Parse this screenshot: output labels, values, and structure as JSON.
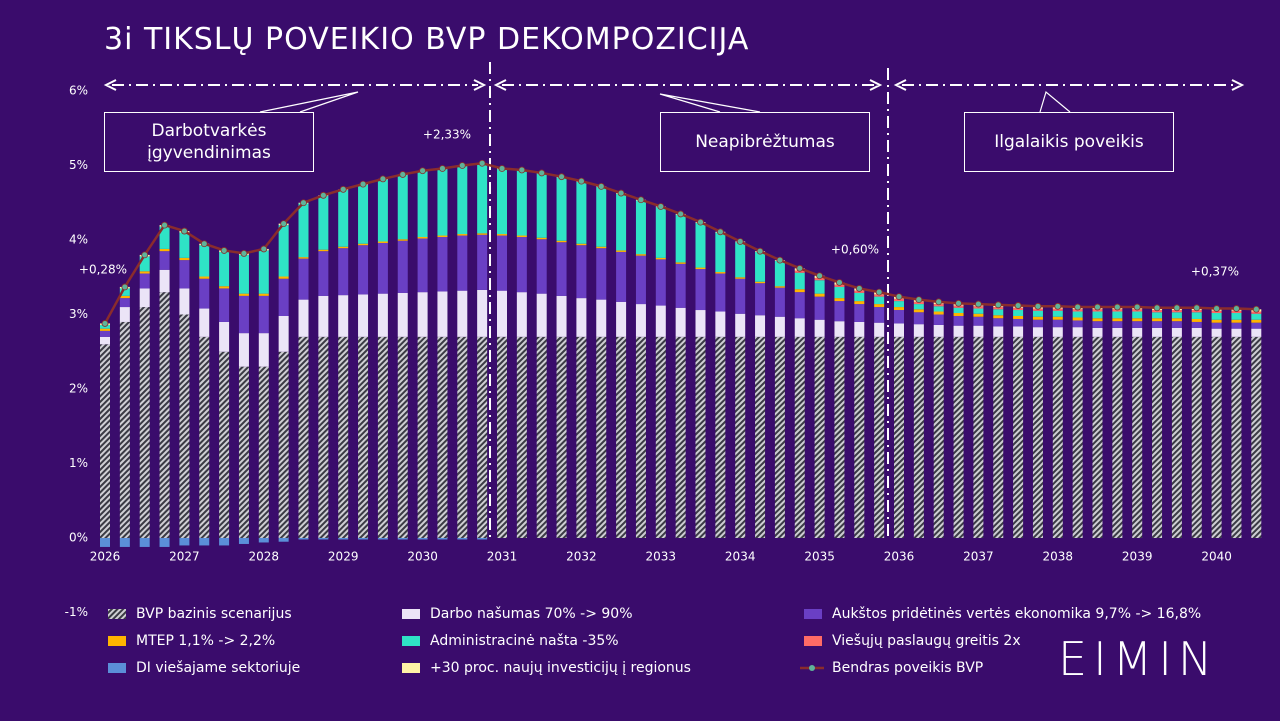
{
  "title": "3i TIKSLŲ POVEIKIO BVP DEKOMPOZICIJA",
  "logo": "EIMIN",
  "sections": [
    "Darbotvarkės įgyvendinimas",
    "Neapibrėžtumas",
    "Ilgalaikis poveikis"
  ],
  "chart_data": {
    "type": "bar",
    "stacked": true,
    "categories": [
      "2026",
      null,
      null,
      null,
      "2027",
      null,
      null,
      null,
      "2028",
      null,
      null,
      null,
      "2029",
      null,
      null,
      null,
      "2030",
      null,
      null,
      null,
      "2031",
      null,
      null,
      null,
      "2032",
      null,
      null,
      null,
      "2033",
      null,
      null,
      null,
      "2034",
      null,
      null,
      null,
      "2035",
      null,
      null,
      null,
      "2036",
      null,
      null,
      null,
      "2037",
      null,
      null,
      null,
      "2038",
      null,
      null,
      null,
      "2039",
      null,
      null,
      null,
      "2040",
      null,
      null
    ],
    "ylim": [
      -1,
      6
    ],
    "yticks": [
      {
        "value": -1,
        "label": "-1%"
      },
      {
        "value": 0,
        "label": "0%"
      },
      {
        "value": 1,
        "label": "1%"
      },
      {
        "value": 2,
        "label": "2%"
      },
      {
        "value": 3,
        "label": "3%"
      },
      {
        "value": 4,
        "label": "4%"
      },
      {
        "value": 5,
        "label": "5%"
      },
      {
        "value": 6,
        "label": "6%"
      }
    ],
    "grid": false,
    "annotations": [
      "+0,28%",
      "+2,33%",
      "+0,60%",
      "+0,37%"
    ],
    "series": [
      {
        "name": "BVP bazinis scenarijus",
        "color": "#cfcfd4",
        "pattern": "hatch",
        "values": [
          2.6,
          2.9,
          3.1,
          3.3,
          3.0,
          2.7,
          2.5,
          2.3,
          2.3,
          2.5,
          2.7,
          2.7,
          2.7,
          2.7,
          2.7,
          2.7,
          2.7,
          2.7,
          2.7,
          2.7,
          2.7,
          2.7,
          2.7,
          2.7,
          2.7,
          2.7,
          2.7,
          2.7,
          2.7,
          2.7,
          2.7,
          2.7,
          2.7,
          2.7,
          2.7,
          2.7,
          2.7,
          2.7,
          2.7,
          2.7,
          2.7,
          2.7,
          2.7,
          2.7,
          2.7,
          2.7,
          2.7,
          2.7,
          2.7,
          2.7,
          2.7,
          2.7,
          2.7,
          2.7,
          2.7,
          2.7,
          2.7,
          2.7,
          2.7
        ]
      },
      {
        "name": "Darbo našumas 70% -> 90%",
        "color": "#ebe4f7",
        "values": [
          0.1,
          0.2,
          0.25,
          0.3,
          0.35,
          0.38,
          0.4,
          0.45,
          0.45,
          0.48,
          0.5,
          0.55,
          0.56,
          0.57,
          0.58,
          0.59,
          0.6,
          0.61,
          0.62,
          0.63,
          0.62,
          0.6,
          0.58,
          0.55,
          0.52,
          0.5,
          0.47,
          0.44,
          0.42,
          0.39,
          0.36,
          0.34,
          0.31,
          0.29,
          0.27,
          0.25,
          0.23,
          0.21,
          0.2,
          0.19,
          0.18,
          0.17,
          0.16,
          0.15,
          0.15,
          0.14,
          0.14,
          0.13,
          0.13,
          0.13,
          0.12,
          0.12,
          0.12,
          0.12,
          0.12,
          0.12,
          0.11,
          0.11,
          0.11
        ]
      },
      {
        "name": "Aukštos pridėtinės vertės ekonomika 9,7% -> 16,8%",
        "color": "#6a3fc4",
        "values": [
          0.08,
          0.12,
          0.2,
          0.25,
          0.38,
          0.4,
          0.45,
          0.5,
          0.5,
          0.5,
          0.55,
          0.6,
          0.63,
          0.66,
          0.68,
          0.7,
          0.72,
          0.73,
          0.74,
          0.74,
          0.74,
          0.74,
          0.73,
          0.72,
          0.71,
          0.69,
          0.67,
          0.65,
          0.62,
          0.59,
          0.55,
          0.51,
          0.47,
          0.43,
          0.39,
          0.35,
          0.31,
          0.27,
          0.24,
          0.21,
          0.18,
          0.16,
          0.14,
          0.13,
          0.12,
          0.11,
          0.1,
          0.1,
          0.1,
          0.09,
          0.09,
          0.09,
          0.09,
          0.09,
          0.09,
          0.08,
          0.08,
          0.08,
          0.08
        ]
      },
      {
        "name": "MTEP 1,1% -> 2,2%",
        "color": "#ffb400",
        "values": [
          0.03,
          0.03,
          0.03,
          0.03,
          0.03,
          0.03,
          0.03,
          0.03,
          0.03,
          0.03,
          0.02,
          0.02,
          0.02,
          0.02,
          0.02,
          0.02,
          0.02,
          0.02,
          0.02,
          0.02,
          0.02,
          0.02,
          0.02,
          0.02,
          0.02,
          0.02,
          0.02,
          0.02,
          0.02,
          0.02,
          0.02,
          0.02,
          0.02,
          0.02,
          0.02,
          0.04,
          0.04,
          0.04,
          0.04,
          0.04,
          0.04,
          0.04,
          0.04,
          0.04,
          0.04,
          0.04,
          0.04,
          0.04,
          0.04,
          0.04,
          0.04,
          0.04,
          0.04,
          0.04,
          0.04,
          0.04,
          0.04,
          0.04,
          0.04
        ]
      },
      {
        "name": "Administracinė našta -35%",
        "color": "#2fe3c6",
        "values": [
          0.05,
          0.1,
          0.2,
          0.3,
          0.34,
          0.42,
          0.46,
          0.52,
          0.58,
          0.69,
          0.72,
          0.72,
          0.76,
          0.79,
          0.83,
          0.86,
          0.88,
          0.89,
          0.91,
          0.93,
          0.87,
          0.87,
          0.86,
          0.85,
          0.83,
          0.8,
          0.76,
          0.72,
          0.68,
          0.64,
          0.6,
          0.53,
          0.47,
          0.4,
          0.34,
          0.22,
          0.18,
          0.15,
          0.11,
          0.1,
          0.08,
          0.07,
          0.07,
          0.07,
          0.07,
          0.08,
          0.08,
          0.08,
          0.08,
          0.08,
          0.09,
          0.09,
          0.09,
          0.08,
          0.08,
          0.09,
          0.09,
          0.09,
          0.08
        ]
      },
      {
        "name": "Viešųjų paslaugų greitis 2x",
        "color": "#ff6b66",
        "values": [
          0,
          0,
          0,
          0,
          0,
          0,
          0,
          0,
          0,
          0,
          0,
          0,
          0,
          0,
          0,
          0,
          0,
          0,
          0,
          0,
          0,
          0,
          0,
          0,
          0,
          0,
          0,
          0,
          0,
          0,
          0,
          0,
          0,
          0,
          0,
          0.03,
          0.03,
          0.03,
          0.03,
          0.03,
          0.03,
          0.03,
          0.03,
          0.03,
          0.03,
          0.03,
          0.03,
          0.03,
          0.03,
          0.03,
          0.03,
          0.03,
          0.03,
          0.03,
          0.03,
          0.03,
          0.03,
          0.03,
          0.03
        ]
      },
      {
        "name": "DI viešajame sektoriuje",
        "color": "#5b8fd8",
        "values": [
          -0.12,
          -0.12,
          -0.12,
          -0.12,
          -0.1,
          -0.1,
          -0.1,
          -0.08,
          -0.06,
          -0.05,
          -0.02,
          -0.02,
          -0.02,
          -0.02,
          -0.02,
          -0.02,
          -0.02,
          -0.02,
          -0.02,
          -0.02,
          0,
          0,
          0,
          0,
          0,
          0,
          0,
          0,
          0,
          0,
          0,
          0,
          0,
          0,
          0,
          0,
          0,
          0,
          0,
          0,
          0,
          0,
          0,
          0,
          0,
          0,
          0,
          0,
          0,
          0,
          0,
          0,
          0,
          0,
          0,
          0,
          0,
          0,
          0
        ]
      },
      {
        "name": "+30 proc. naujų investicijų į regionus",
        "color": "#fff3a6",
        "values": [
          0.02,
          0.02,
          0.02,
          0.02,
          0.02,
          0.02,
          0.02,
          0.02,
          0.02,
          0.02,
          0.01,
          0.01,
          0.01,
          0.01,
          0.01,
          0.01,
          0.01,
          0.01,
          0.01,
          0.01,
          0.01,
          0.01,
          0.01,
          0.01,
          0.01,
          0.01,
          0.01,
          0.01,
          0.01,
          0.01,
          0.01,
          0.01,
          0.01,
          0.01,
          0.01,
          0.03,
          0.03,
          0.03,
          0.03,
          0.03,
          0.03,
          0.03,
          0.03,
          0.03,
          0.03,
          0.03,
          0.03,
          0.03,
          0.03,
          0.03,
          0.03,
          0.03,
          0.03,
          0.03,
          0.03,
          0.03,
          0.03,
          0.03,
          0.03
        ]
      },
      {
        "name": "Bendras poveikis BVP",
        "type": "line",
        "color": "#8a2c2c",
        "marker_color": "#5fb39a",
        "values": [
          2.88,
          3.37,
          3.8,
          4.2,
          4.12,
          3.95,
          3.86,
          3.82,
          3.88,
          4.22,
          4.5,
          4.6,
          4.68,
          4.75,
          4.82,
          4.88,
          4.93,
          4.96,
          5.0,
          5.03,
          4.96,
          4.94,
          4.9,
          4.85,
          4.79,
          4.72,
          4.63,
          4.54,
          4.45,
          4.35,
          4.24,
          4.11,
          3.98,
          3.85,
          3.73,
          3.62,
          3.52,
          3.43,
          3.35,
          3.3,
          3.24,
          3.2,
          3.17,
          3.15,
          3.14,
          3.13,
          3.12,
          3.11,
          3.11,
          3.1,
          3.1,
          3.1,
          3.1,
          3.09,
          3.09,
          3.09,
          3.08,
          3.08,
          3.07
        ]
      }
    ]
  }
}
